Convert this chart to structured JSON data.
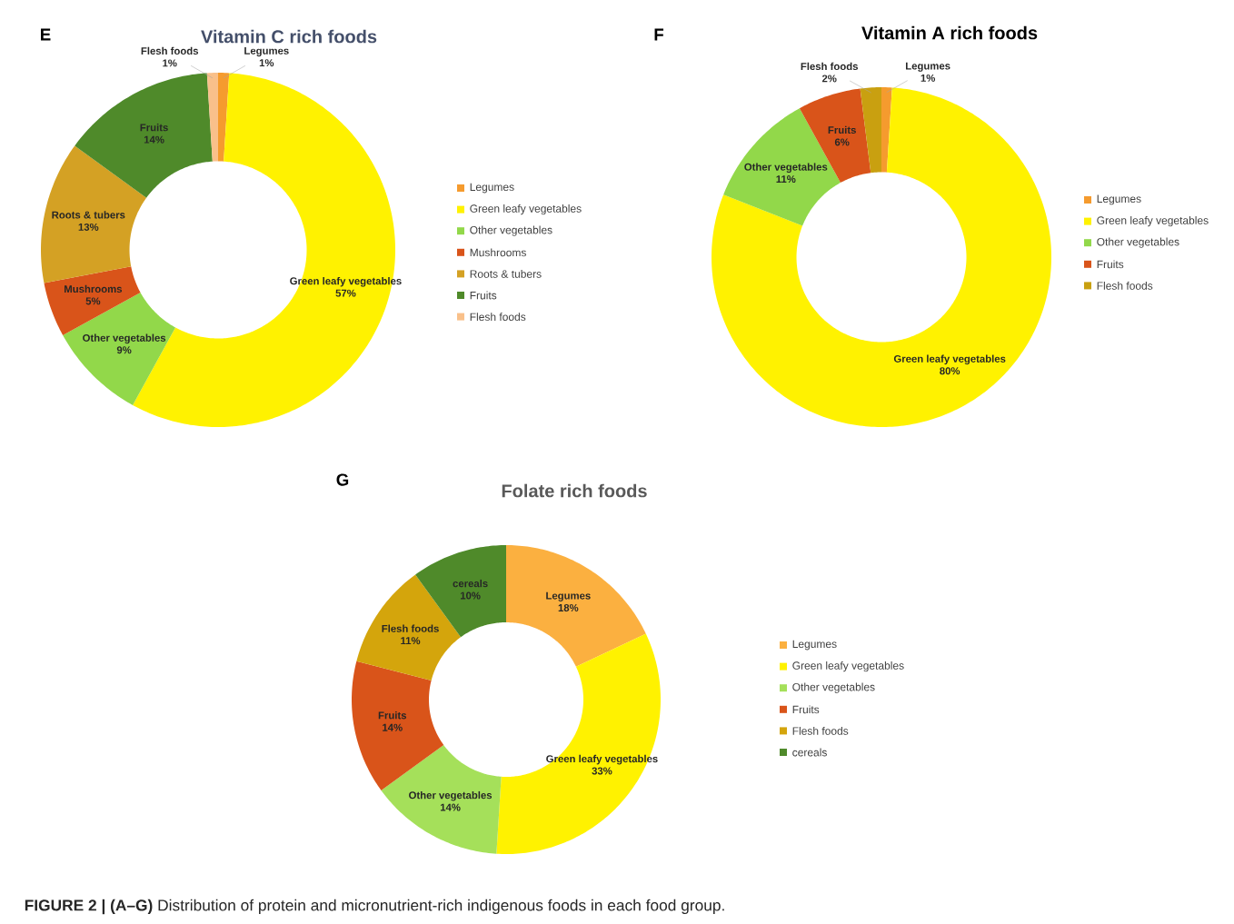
{
  "chart_data": [
    {
      "type": "donut",
      "title": "Vitamin C rich foods",
      "annotations": [
        "E"
      ],
      "legend": "right",
      "categories": [
        "Legumes",
        "Green leafy vegetables",
        "Other vegetables",
        "Mushrooms",
        "Roots & tubers",
        "Fruits",
        "Flesh foods"
      ],
      "values": [
        1,
        57,
        9,
        5,
        13,
        14,
        1
      ],
      "value_labels": [
        "1%",
        "57%",
        "9%",
        "5%",
        "13%",
        "14%",
        "1%"
      ],
      "colors": [
        "#f59b2e",
        "#fff200",
        "#92d84a",
        "#d9541a",
        "#d4a124",
        "#4f8a2a",
        "#f9c08a"
      ]
    },
    {
      "type": "donut",
      "title": "Vitamin A rich foods",
      "annotations": [
        "F"
      ],
      "legend": "right",
      "categories": [
        "Legumes",
        "Green leafy vegetables",
        "Other vegetables",
        "Fruits",
        "Flesh foods"
      ],
      "values": [
        1,
        80,
        11,
        6,
        2
      ],
      "value_labels": [
        "1%",
        "80%",
        "11%",
        "6%",
        "2%"
      ],
      "colors": [
        "#f59b2e",
        "#fff200",
        "#92d84a",
        "#d9541a",
        "#c9a010"
      ]
    },
    {
      "type": "donut",
      "title": "Folate rich foods",
      "annotations": [
        "G",
        "**FIGURE 2 | (A–G)** Distribution of protein and micronutrient-rich indigenous foods in each food group."
      ],
      "legend": "right",
      "categories": [
        "Legumes",
        "Green leafy vegetables",
        "Other vegetables",
        "Fruits",
        "Flesh foods",
        "cereals"
      ],
      "values": [
        18,
        33,
        14,
        14,
        11,
        10
      ],
      "value_labels": [
        "18%",
        "33%",
        "14%",
        "14%",
        "11%",
        "10%"
      ],
      "colors": [
        "#fbb040",
        "#fff200",
        "#a5e05a",
        "#d9541a",
        "#d4a50c",
        "#4f8a2a"
      ]
    }
  ]
}
